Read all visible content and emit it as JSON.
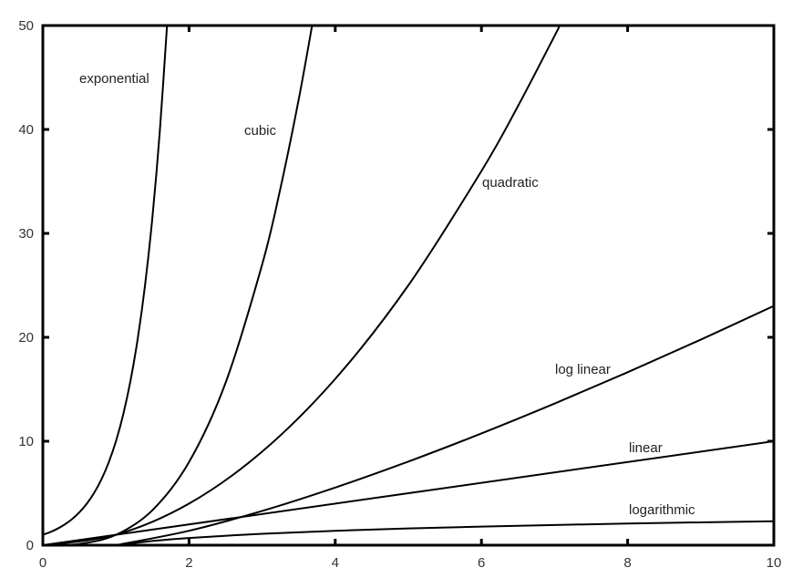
{
  "chart_data": {
    "type": "line",
    "xlim": [
      0,
      10
    ],
    "ylim": [
      0,
      50
    ],
    "xticks": [
      0,
      2,
      4,
      6,
      8,
      10
    ],
    "yticks": [
      0,
      10,
      20,
      30,
      40,
      50
    ],
    "series": [
      {
        "name": "exponential",
        "color": "#000000",
        "x": [
          0,
          0.1,
          0.2,
          0.3,
          0.4,
          0.5,
          0.6,
          0.7,
          0.8,
          0.9,
          1.0,
          1.1,
          1.2,
          1.3,
          1.4,
          1.5,
          1.6,
          1.7
        ],
        "values": [
          1,
          1.259,
          1.585,
          1.995,
          2.512,
          3.162,
          3.981,
          5.012,
          6.31,
          7.943,
          10,
          12.589,
          15.849,
          19.953,
          25.119,
          31.623,
          39.811,
          50.119
        ]
      },
      {
        "name": "cubic",
        "color": "#000000",
        "x": [
          0,
          0.5,
          1,
          1.5,
          2,
          2.5,
          3,
          3.25,
          3.5,
          3.7
        ],
        "values": [
          0,
          0.125,
          1,
          3.375,
          8,
          15.625,
          27,
          34.328,
          42.875,
          50.653
        ]
      },
      {
        "name": "quadratic",
        "color": "#000000",
        "x": [
          0,
          1,
          2,
          3,
          4,
          5,
          6,
          6.5,
          7,
          7.1
        ],
        "values": [
          0,
          1,
          4,
          9,
          16,
          25,
          36,
          42.25,
          49,
          50.41
        ]
      },
      {
        "name": "log linear",
        "color": "#000000",
        "x": [
          1,
          2,
          3,
          4,
          5,
          6,
          7,
          8,
          9,
          10
        ],
        "values": [
          0,
          1.386,
          3.296,
          5.545,
          8.047,
          10.751,
          13.621,
          16.636,
          19.775,
          23.026
        ]
      },
      {
        "name": "linear",
        "color": "#000000",
        "x": [
          0,
          10
        ],
        "values": [
          0,
          10
        ]
      },
      {
        "name": "logarithmic",
        "color": "#000000",
        "x": [
          1,
          1.5,
          2,
          3,
          4,
          5,
          6,
          7,
          8,
          9,
          10
        ],
        "values": [
          0,
          0.405,
          0.693,
          1.099,
          1.386,
          1.609,
          1.792,
          1.946,
          2.079,
          2.197,
          2.303
        ]
      }
    ]
  }
}
